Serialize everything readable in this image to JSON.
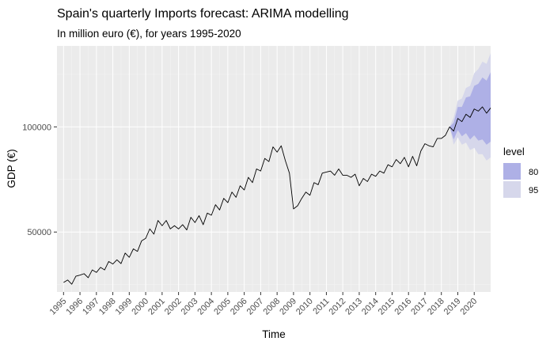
{
  "chart_data": {
    "type": "line",
    "title": "Spain's quarterly Imports forecast: ARIMA modelling",
    "subtitle": "In million euro (€), for years 1995-2020",
    "xlabel": "Time",
    "ylabel": "GDP (€)",
    "xlim": [
      1994.6,
      2021.0
    ],
    "ylim": [
      21500,
      138500
    ],
    "grid": true,
    "legend_position": "right",
    "y_ticks": [
      50000,
      100000
    ],
    "y_tick_labels": [
      "50000",
      "100000"
    ],
    "x_ticks": [
      1995,
      1996,
      1997,
      1998,
      1999,
      2000,
      2001,
      2002,
      2003,
      2004,
      2005,
      2006,
      2007,
      2008,
      2009,
      2010,
      2011,
      2012,
      2013,
      2014,
      2015,
      2016,
      2017,
      2018,
      2019,
      2020
    ],
    "legend": {
      "title": "level",
      "entries": [
        {
          "label": "80",
          "color": "#aeb0e6"
        },
        {
          "label": "95",
          "color": "#d6d7eb"
        }
      ]
    },
    "series": [
      {
        "kind": "observed",
        "color": "#000000",
        "x": [
          1995.0,
          1995.25,
          1995.5,
          1995.75,
          1996.0,
          1996.25,
          1996.5,
          1996.75,
          1997.0,
          1997.25,
          1997.5,
          1997.75,
          1998.0,
          1998.25,
          1998.5,
          1998.75,
          1999.0,
          1999.25,
          1999.5,
          1999.75,
          2000.0,
          2000.25,
          2000.5,
          2000.75,
          2001.0,
          2001.25,
          2001.5,
          2001.75,
          2002.0,
          2002.25,
          2002.5,
          2002.75,
          2003.0,
          2003.25,
          2003.5,
          2003.75,
          2004.0,
          2004.25,
          2004.5,
          2004.75,
          2005.0,
          2005.25,
          2005.5,
          2005.75,
          2006.0,
          2006.25,
          2006.5,
          2006.75,
          2007.0,
          2007.25,
          2007.5,
          2007.75,
          2008.0,
          2008.25,
          2008.5,
          2008.75,
          2009.0,
          2009.25,
          2009.5,
          2009.75,
          2010.0,
          2010.25,
          2010.5,
          2010.75,
          2011.0,
          2011.25,
          2011.5,
          2011.75,
          2012.0,
          2012.25,
          2012.5,
          2012.75,
          2013.0,
          2013.25,
          2013.5,
          2013.75,
          2014.0,
          2014.25,
          2014.5,
          2014.75,
          2015.0,
          2015.25,
          2015.5,
          2015.75,
          2016.0,
          2016.25,
          2016.5,
          2016.75,
          2017.0,
          2017.25,
          2017.5,
          2017.75,
          2018.0,
          2018.25,
          2018.5
        ],
        "values": [
          26000,
          27200,
          25200,
          29000,
          29500,
          30200,
          28300,
          32000,
          30800,
          33200,
          32000,
          36000,
          34800,
          36800,
          35000,
          40000,
          38000,
          42000,
          40800,
          45800,
          47000,
          51500,
          49000,
          55500,
          53000,
          55500,
          51500,
          53000,
          51500,
          53500,
          51000,
          57000,
          54500,
          57800,
          53500,
          59000,
          58000,
          63000,
          60500,
          66000,
          64000,
          69000,
          66500,
          72000,
          70000,
          76000,
          73500,
          80000,
          79000,
          85000,
          83500,
          90500,
          88000,
          91000,
          84000,
          78000,
          61000,
          62500,
          66000,
          69000,
          67500,
          73500,
          72500,
          78000,
          78500,
          79000,
          77000,
          80000,
          77000,
          77000,
          76000,
          77500,
          72000,
          75500,
          74000,
          77500,
          76500,
          79000,
          78000,
          82000,
          81000,
          84500,
          82500,
          85500,
          81000,
          86000,
          81500,
          88500,
          92000,
          91000,
          90500,
          94500,
          94500,
          96000,
          100000
        ]
      },
      {
        "kind": "forecast",
        "color": "#000000",
        "x": [
          2018.75,
          2019.0,
          2019.25,
          2019.5,
          2019.75,
          2020.0,
          2020.25,
          2020.5,
          2020.75,
          2021.0
        ],
        "values": [
          98000,
          104000,
          102500,
          106000,
          104500,
          108500,
          107500,
          109500,
          106500,
          109000
        ]
      },
      {
        "kind": "interval",
        "level": "80",
        "x": [
          2018.5,
          2018.75,
          2019.0,
          2019.25,
          2019.5,
          2019.75,
          2020.0,
          2020.25,
          2020.5,
          2020.75,
          2021.0
        ],
        "lower": [
          100000,
          94000,
          98500,
          95500,
          97000,
          94000,
          96000,
          93500,
          94000,
          91500,
          93000
        ],
        "upper": [
          100000,
          102000,
          109500,
          109500,
          114000,
          114500,
          119500,
          120500,
          123500,
          122000,
          126000
        ]
      },
      {
        "kind": "interval",
        "level": "95",
        "x": [
          2018.5,
          2018.75,
          2019.0,
          2019.25,
          2019.5,
          2019.75,
          2020.0,
          2020.25,
          2020.5,
          2020.75,
          2021.0
        ],
        "lower": [
          100000,
          91500,
          95000,
          91500,
          92500,
          89000,
          90000,
          87000,
          87000,
          84000,
          85500
        ],
        "upper": [
          100000,
          104500,
          112500,
          113500,
          118500,
          119500,
          125500,
          127500,
          131000,
          130000,
          135000
        ]
      }
    ]
  }
}
